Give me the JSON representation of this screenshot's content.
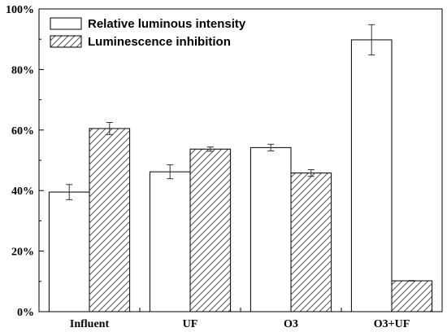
{
  "chart_data": {
    "type": "bar",
    "categories": [
      "Influent",
      "UF",
      "O3",
      "O3+UF"
    ],
    "series": [
      {
        "name": "Relative luminous intensity",
        "values": [
          39.5,
          46.2,
          54.2,
          89.8
        ],
        "errors": [
          2.5,
          2.3,
          1.1,
          5.0
        ],
        "pattern": "none"
      },
      {
        "name": "Luminescence inhibition",
        "values": [
          60.5,
          53.7,
          45.8,
          10.2
        ],
        "errors": [
          2.0,
          0.7,
          1.1,
          0.1
        ],
        "pattern": "diagonal-hatch"
      }
    ],
    "ylim": [
      0,
      100
    ],
    "yticks": [
      0,
      20,
      40,
      60,
      80,
      100
    ],
    "ytick_labels": [
      "0%",
      "20%",
      "40%",
      "60%",
      "80%",
      "100%"
    ],
    "title": "",
    "xlabel": "",
    "ylabel": "",
    "legend_position": "top-left",
    "grid": false,
    "colors": {
      "bar_fill": "#ffffff",
      "stroke": "#000000",
      "hatch": "#555555"
    }
  }
}
